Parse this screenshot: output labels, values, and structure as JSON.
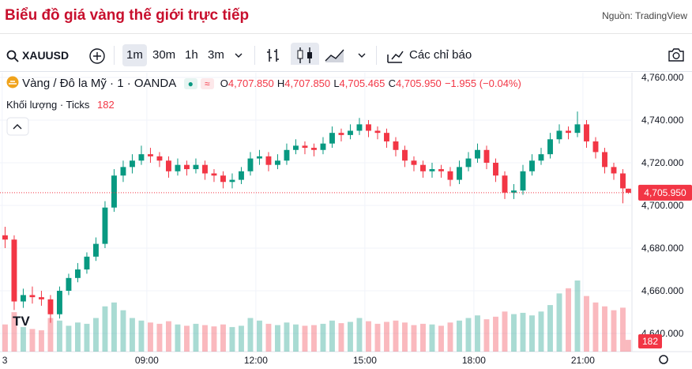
{
  "header": {
    "title": "Biểu đồ giá vàng thế giới trực tiếp",
    "source": "Nguồn: TradingView"
  },
  "toolbar": {
    "symbol": "XAUUSD",
    "intervals": [
      "1m",
      "30m",
      "1h",
      "3m"
    ],
    "indicators": "Các chỉ báo"
  },
  "chart_data": {
    "type": "candlestick",
    "symbol_name": "Vàng / Đô la Mỹ · 1 · OANDA",
    "legend": {
      "o": "O",
      "open": "4,707.850",
      "h": "H",
      "high": "4,707.850",
      "l": "L",
      "low": "4,705.465",
      "c": "C",
      "close": "4,705.950",
      "change": "−1.955 (−0.04%)"
    },
    "volume_name": "Khối lượng · Ticks",
    "last_volume": 182,
    "last_price": {
      "value": 4705.95,
      "label": "4,705.950"
    },
    "up_color": "#089981",
    "down_color": "#f23645",
    "x": [
      5.1,
      5.35,
      5.6,
      5.85,
      6.1,
      6.35,
      6.6,
      6.85,
      7.1,
      7.35,
      7.6,
      7.85,
      8.1,
      8.35,
      8.6,
      8.85,
      9.1,
      9.35,
      9.6,
      9.85,
      10.1,
      10.35,
      10.6,
      10.85,
      11.1,
      11.35,
      11.6,
      11.85,
      12.1,
      12.35,
      12.6,
      12.85,
      13.1,
      13.35,
      13.6,
      13.85,
      14.1,
      14.35,
      14.6,
      14.85,
      15.1,
      15.35,
      15.6,
      15.85,
      16.1,
      16.35,
      16.6,
      16.85,
      17.1,
      17.35,
      17.6,
      17.85,
      18.1,
      18.35,
      18.6,
      18.85,
      19.1,
      19.35,
      19.6,
      19.85,
      20.1,
      20.35,
      20.6,
      20.85,
      21.1,
      21.35,
      21.6,
      21.85,
      22.1,
      22.25
    ],
    "open": [
      4686,
      4684,
      4655,
      4658,
      4657,
      4656,
      4649,
      4660,
      4666,
      4670,
      4676,
      4682,
      4699,
      4714,
      4718,
      4721,
      4724,
      4723,
      4721,
      4716,
      4719,
      4717,
      4719,
      4715,
      4714,
      4711,
      4712,
      4716,
      4722,
      4723,
      4719,
      4721,
      4726,
      4728,
      4727,
      4726,
      4729,
      4734,
      4733,
      4735,
      4738,
      4735,
      4734,
      4730,
      4726,
      4721,
      4719,
      4716,
      4717,
      4716,
      4712,
      4718,
      4722,
      4726,
      4720,
      4714,
      4706,
      4707,
      4716,
      4721,
      4724,
      4731,
      4735,
      4734,
      4738,
      4730,
      4725,
      4718,
      4715,
      4707.85
    ],
    "high": [
      4690,
      4686,
      4661,
      4662,
      4660,
      4658,
      4662,
      4668,
      4673,
      4678,
      4685,
      4702,
      4717,
      4721,
      4724,
      4728,
      4727,
      4725,
      4723,
      4722,
      4721,
      4722,
      4721,
      4717,
      4716,
      4715,
      4718,
      4725,
      4726,
      4725,
      4724,
      4729,
      4731,
      4730,
      4729,
      4732,
      4737,
      4736,
      4738,
      4741,
      4740,
      4737,
      4736,
      4732,
      4728,
      4723,
      4721,
      4720,
      4719,
      4718,
      4721,
      4725,
      4729,
      4728,
      4722,
      4716,
      4710,
      4719,
      4724,
      4727,
      4734,
      4738,
      4737,
      4744,
      4740,
      4732,
      4727,
      4720,
      4717,
      4707.85
    ],
    "low": [
      4680,
      4651,
      4652,
      4654,
      4653,
      4645,
      4647,
      4658,
      4664,
      4668,
      4674,
      4680,
      4697,
      4711,
      4715,
      4719,
      4720,
      4718,
      4713,
      4714,
      4714,
      4715,
      4712,
      4711,
      4708,
      4708,
      4710,
      4714,
      4719,
      4716,
      4717,
      4719,
      4724,
      4724,
      4723,
      4724,
      4727,
      4730,
      4731,
      4733,
      4732,
      4731,
      4727,
      4723,
      4718,
      4716,
      4713,
      4713,
      4713,
      4709,
      4710,
      4716,
      4720,
      4717,
      4711,
      4703,
      4703,
      4705,
      4714,
      4719,
      4722,
      4729,
      4731,
      4732,
      4727,
      4722,
      4715,
      4712,
      4701,
      4705.465
    ],
    "close": [
      4684,
      4655,
      4658,
      4657,
      4656,
      4649,
      4660,
      4666,
      4670,
      4676,
      4682,
      4699,
      4714,
      4718,
      4721,
      4724,
      4723,
      4721,
      4716,
      4719,
      4717,
      4719,
      4715,
      4714,
      4711,
      4712,
      4716,
      4722,
      4723,
      4719,
      4721,
      4726,
      4728,
      4727,
      4726,
      4729,
      4734,
      4733,
      4735,
      4738,
      4735,
      4734,
      4730,
      4726,
      4721,
      4719,
      4716,
      4717,
      4716,
      4712,
      4718,
      4722,
      4726,
      4720,
      4714,
      4706,
      4707,
      4716,
      4721,
      4724,
      4731,
      4735,
      4734,
      4738,
      4730,
      4725,
      4718,
      4715,
      4708,
      4705.95
    ],
    "volume": [
      420,
      610,
      380,
      350,
      330,
      520,
      480,
      400,
      450,
      430,
      520,
      700,
      760,
      640,
      520,
      480,
      450,
      430,
      470,
      420,
      400,
      430,
      410,
      390,
      420,
      380,
      400,
      520,
      480,
      430,
      410,
      450,
      420,
      400,
      410,
      430,
      480,
      440,
      460,
      520,
      470,
      430,
      460,
      480,
      450,
      410,
      430,
      420,
      400,
      450,
      480,
      520,
      560,
      500,
      540,
      620,
      580,
      600,
      560,
      620,
      720,
      900,
      980,
      1100,
      860,
      760,
      700,
      640,
      680,
      182
    ],
    "xlim": [
      4.96,
      22.35
    ],
    "xticks": [
      {
        "value": 5.02,
        "label": "3"
      },
      {
        "value": 9,
        "label": "09:00"
      },
      {
        "value": 12,
        "label": "12:00"
      },
      {
        "value": 15,
        "label": "15:00"
      },
      {
        "value": 18,
        "label": "18:00"
      },
      {
        "value": 21,
        "label": "21:00"
      }
    ],
    "ylim": [
      4631.5,
      4762.2
    ],
    "yticks": [
      {
        "value": 4640,
        "label": "4,640.000"
      },
      {
        "value": 4660,
        "label": "4,660.000"
      },
      {
        "value": 4680,
        "label": "4,680.000"
      },
      {
        "value": 4700,
        "label": "4,700.000"
      },
      {
        "value": 4720,
        "label": "4,720.000"
      },
      {
        "value": 4740,
        "label": "4,740.000"
      },
      {
        "value": 4760,
        "label": "4,760.000"
      }
    ],
    "grid": true
  }
}
